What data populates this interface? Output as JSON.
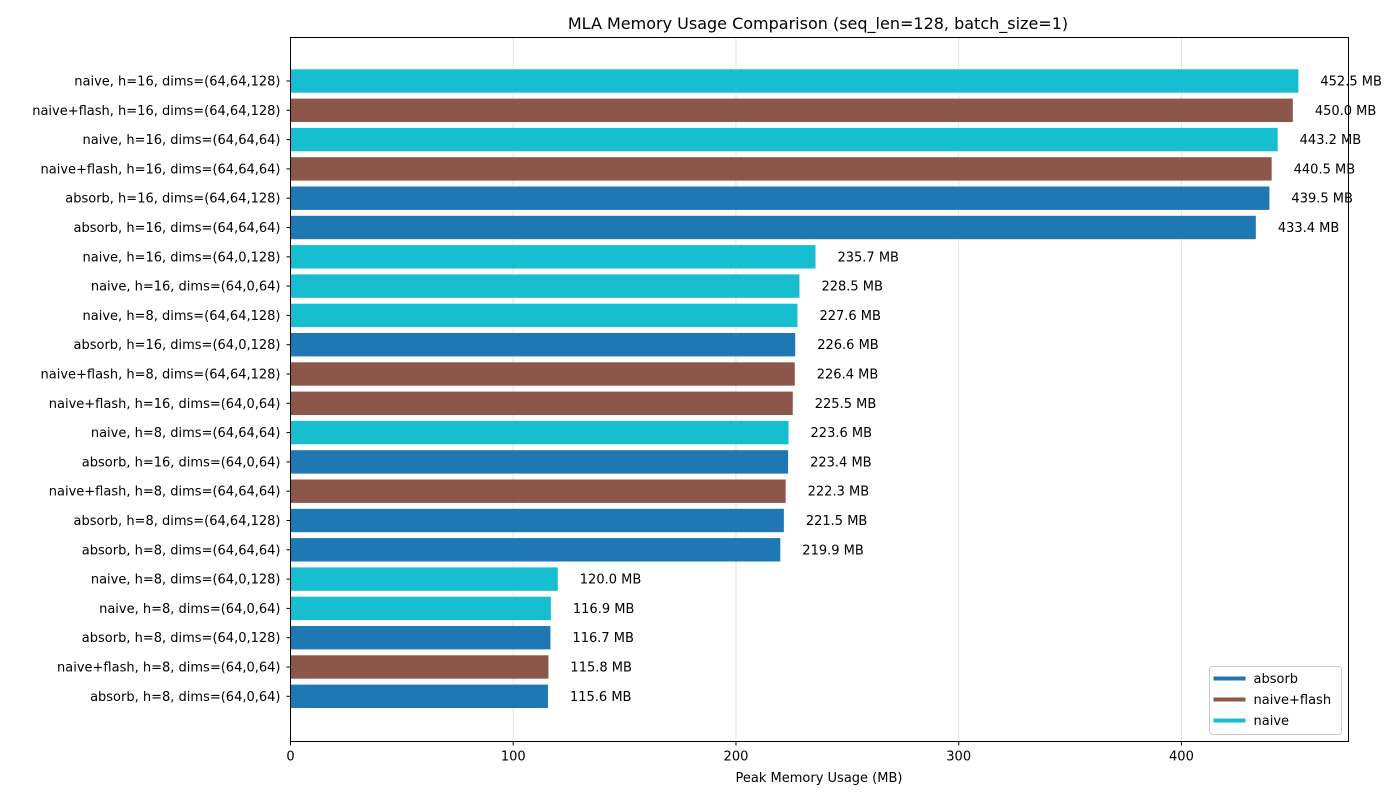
{
  "chart_data": {
    "type": "bar",
    "orientation": "horizontal",
    "title": "MLA Memory Usage Comparison (seq_len=128, batch_size=1)",
    "xlabel": "Peak Memory Usage (MB)",
    "ylabel": "",
    "xlim": [
      0,
      475
    ],
    "xticks": [
      0,
      100,
      200,
      300,
      400
    ],
    "grid": "x",
    "value_suffix": " MB",
    "legend": {
      "placement": "bottom-right",
      "entries": [
        {
          "name": "absorb",
          "color": "#1f77b4"
        },
        {
          "name": "naive+flash",
          "color": "#8c564b"
        },
        {
          "name": "naive",
          "color": "#17becf"
        }
      ]
    },
    "bars": [
      {
        "label": "naive, h=16, dims=(64,64,128)",
        "method": "naive",
        "value": 452.5
      },
      {
        "label": "naive+flash, h=16, dims=(64,64,128)",
        "method": "naive+flash",
        "value": 450.0
      },
      {
        "label": "naive, h=16, dims=(64,64,64)",
        "method": "naive",
        "value": 443.2
      },
      {
        "label": "naive+flash, h=16, dims=(64,64,64)",
        "method": "naive+flash",
        "value": 440.5
      },
      {
        "label": "absorb, h=16, dims=(64,64,128)",
        "method": "absorb",
        "value": 439.5
      },
      {
        "label": "absorb, h=16, dims=(64,64,64)",
        "method": "absorb",
        "value": 433.4
      },
      {
        "label": "naive, h=16, dims=(64,0,128)",
        "method": "naive",
        "value": 235.7
      },
      {
        "label": "naive, h=16, dims=(64,0,64)",
        "method": "naive",
        "value": 228.5
      },
      {
        "label": "naive, h=8, dims=(64,64,128)",
        "method": "naive",
        "value": 227.6
      },
      {
        "label": "absorb, h=16, dims=(64,0,128)",
        "method": "absorb",
        "value": 226.6
      },
      {
        "label": "naive+flash, h=8, dims=(64,64,128)",
        "method": "naive+flash",
        "value": 226.4
      },
      {
        "label": "naive+flash, h=16, dims=(64,0,64)",
        "method": "naive+flash",
        "value": 225.5
      },
      {
        "label": "naive, h=8, dims=(64,64,64)",
        "method": "naive",
        "value": 223.6
      },
      {
        "label": "absorb, h=16, dims=(64,0,64)",
        "method": "absorb",
        "value": 223.4
      },
      {
        "label": "naive+flash, h=8, dims=(64,64,64)",
        "method": "naive+flash",
        "value": 222.3
      },
      {
        "label": "absorb, h=8, dims=(64,64,128)",
        "method": "absorb",
        "value": 221.5
      },
      {
        "label": "absorb, h=8, dims=(64,64,64)",
        "method": "absorb",
        "value": 219.9
      },
      {
        "label": "naive, h=8, dims=(64,0,128)",
        "method": "naive",
        "value": 120.0
      },
      {
        "label": "naive, h=8, dims=(64,0,64)",
        "method": "naive",
        "value": 116.9
      },
      {
        "label": "absorb, h=8, dims=(64,0,128)",
        "method": "absorb",
        "value": 116.7
      },
      {
        "label": "naive+flash, h=8, dims=(64,0,64)",
        "method": "naive+flash",
        "value": 115.8
      },
      {
        "label": "absorb, h=8, dims=(64,0,64)",
        "method": "absorb",
        "value": 115.6
      }
    ]
  }
}
